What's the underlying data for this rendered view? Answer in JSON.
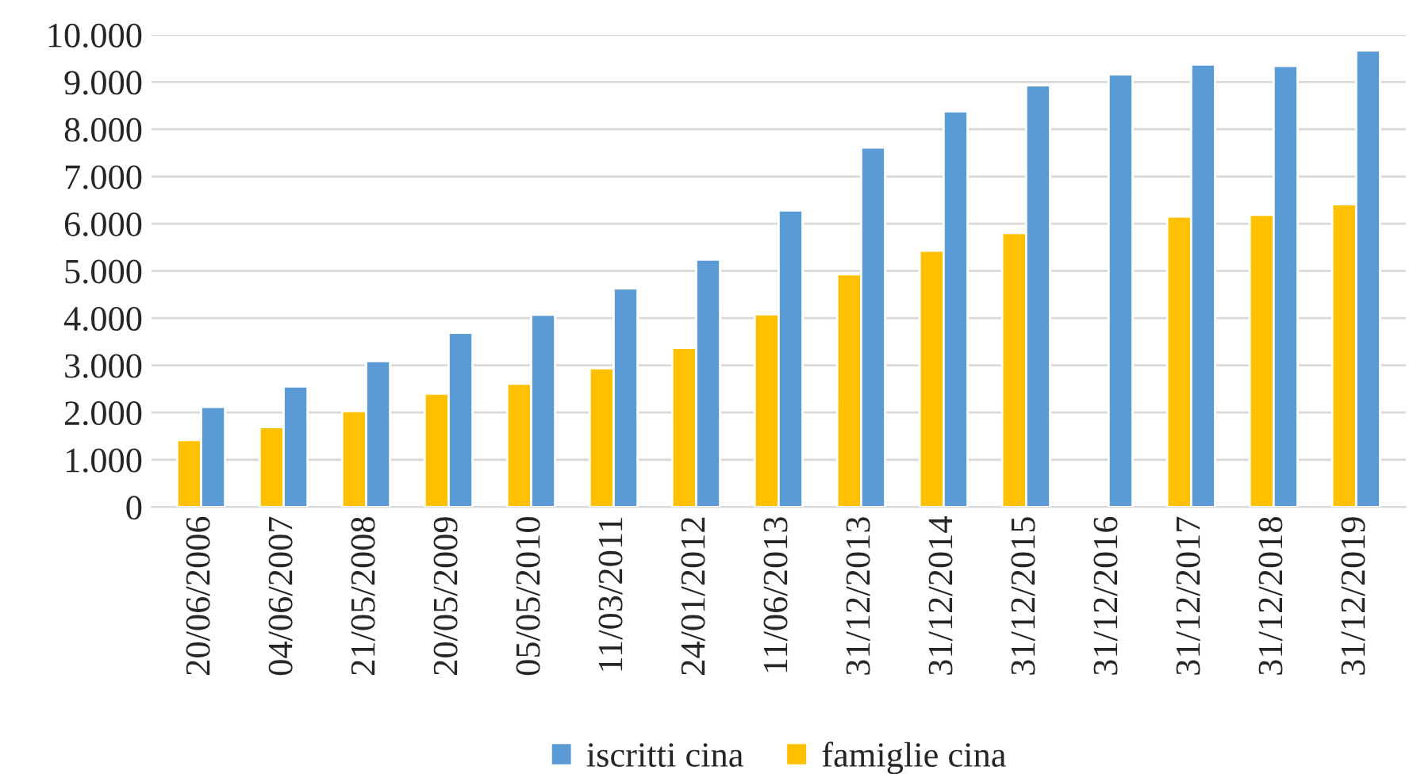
{
  "chart_data": {
    "type": "bar",
    "categories": [
      "20/06/2006",
      "04/06/2007",
      "21/05/2008",
      "20/05/2009",
      "05/05/2010",
      "11/03/2011",
      "24/01/2012",
      "11/06/2013",
      "31/12/2013",
      "31/12/2014",
      "31/12/2015",
      "31/12/2016",
      "31/12/2017",
      "31/12/2018",
      "31/12/2019"
    ],
    "series": [
      {
        "name": "famiglie cina",
        "color": "#ffc000",
        "values": [
          1420,
          1690,
          2030,
          2400,
          2610,
          2940,
          3370,
          4080,
          4930,
          5430,
          5800,
          null,
          6150,
          6190,
          6410
        ]
      },
      {
        "name": "iscritti cina",
        "color": "#5b9bd5",
        "values": [
          2120,
          2550,
          3090,
          3690,
          4070,
          4630,
          5240,
          6280,
          7610,
          8380,
          8930,
          9160,
          9370,
          9340,
          9670
        ]
      }
    ],
    "ylim": [
      0,
      10000
    ],
    "yticks": [
      {
        "value": 0,
        "label": "0"
      },
      {
        "value": 1000,
        "label": "1.000"
      },
      {
        "value": 2000,
        "label": "2.000"
      },
      {
        "value": 3000,
        "label": "3.000"
      },
      {
        "value": 4000,
        "label": "4.000"
      },
      {
        "value": 5000,
        "label": "5.000"
      },
      {
        "value": 6000,
        "label": "6.000"
      },
      {
        "value": 7000,
        "label": "7.000"
      },
      {
        "value": 8000,
        "label": "8.000"
      },
      {
        "value": 9000,
        "label": "9.000"
      },
      {
        "value": 10000,
        "label": "10.000"
      }
    ],
    "grid": "y",
    "legend": "bottom"
  }
}
